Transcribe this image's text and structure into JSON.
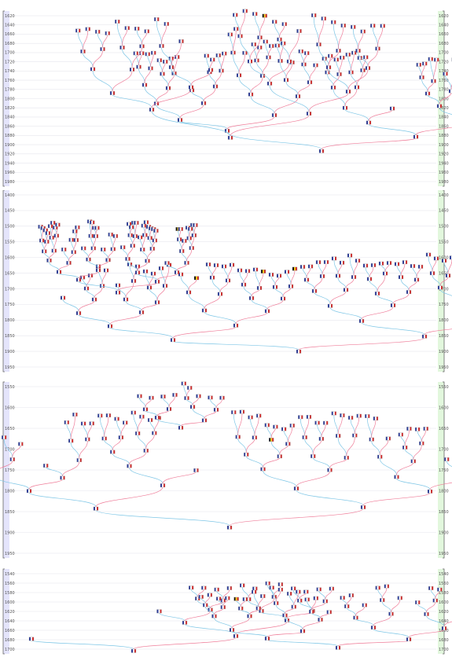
{
  "colors": {
    "ruler_left": "#e4e4fb",
    "ruler_right": "#e2f7dd",
    "male_link": "#7ec6e6",
    "female_link": "#ef7e9a",
    "flag_blue": "#2b3d9a",
    "flag_red": "#d12b2b",
    "flag_black": "#111111",
    "flag_yellow": "#f0c419",
    "flag_orange": "#e07b1a"
  },
  "icons": [
    "french-flag-icon",
    "belgian-flag-icon",
    "spanish-flag-icon",
    "portrait-icon"
  ],
  "panels": [
    {
      "name": "panel-1",
      "years_left": [
        "1620",
        "1640",
        "1660",
        "1680",
        "1700",
        "1720",
        "1740",
        "1760",
        "1780",
        "1800",
        "1820",
        "1840",
        "1860",
        "1880",
        "1900",
        "1920",
        "1940",
        "1960",
        "1980"
      ],
      "years_right": [
        "1620",
        "1640",
        "1660",
        "1680",
        "1700",
        "1720",
        "1740",
        "1760",
        "1780",
        "1800",
        "1820",
        "1840",
        "1860",
        "1880",
        "1900",
        "1920",
        "1940",
        "1960",
        "1980"
      ]
    },
    {
      "name": "panel-2",
      "years_left": [
        "1400",
        "1450",
        "1500",
        "1550",
        "1600",
        "1650",
        "1700",
        "1750",
        "1800",
        "1850",
        "1900",
        "1950"
      ],
      "years_right": [
        "1400",
        "1450",
        "1500",
        "1550",
        "1600",
        "1650",
        "1700",
        "1750",
        "1800",
        "1850",
        "1900",
        "1950"
      ]
    },
    {
      "name": "panel-3",
      "years_left": [
        "1550",
        "1600",
        "1650",
        "1700",
        "1750",
        "1800",
        "1850",
        "1900",
        "1950"
      ],
      "years_right": [
        "1550",
        "1600",
        "1650",
        "1700",
        "1750",
        "1800",
        "1850",
        "1900",
        "1950"
      ]
    },
    {
      "name": "panel-4",
      "years_left": [
        "1540",
        "1560",
        "1580",
        "1600",
        "1620",
        "1640",
        "1660",
        "1680",
        "1700"
      ],
      "years_right": [
        "1540",
        "1560",
        "1580",
        "1600",
        "1620",
        "1640",
        "1660",
        "1680",
        "1700"
      ]
    }
  ]
}
